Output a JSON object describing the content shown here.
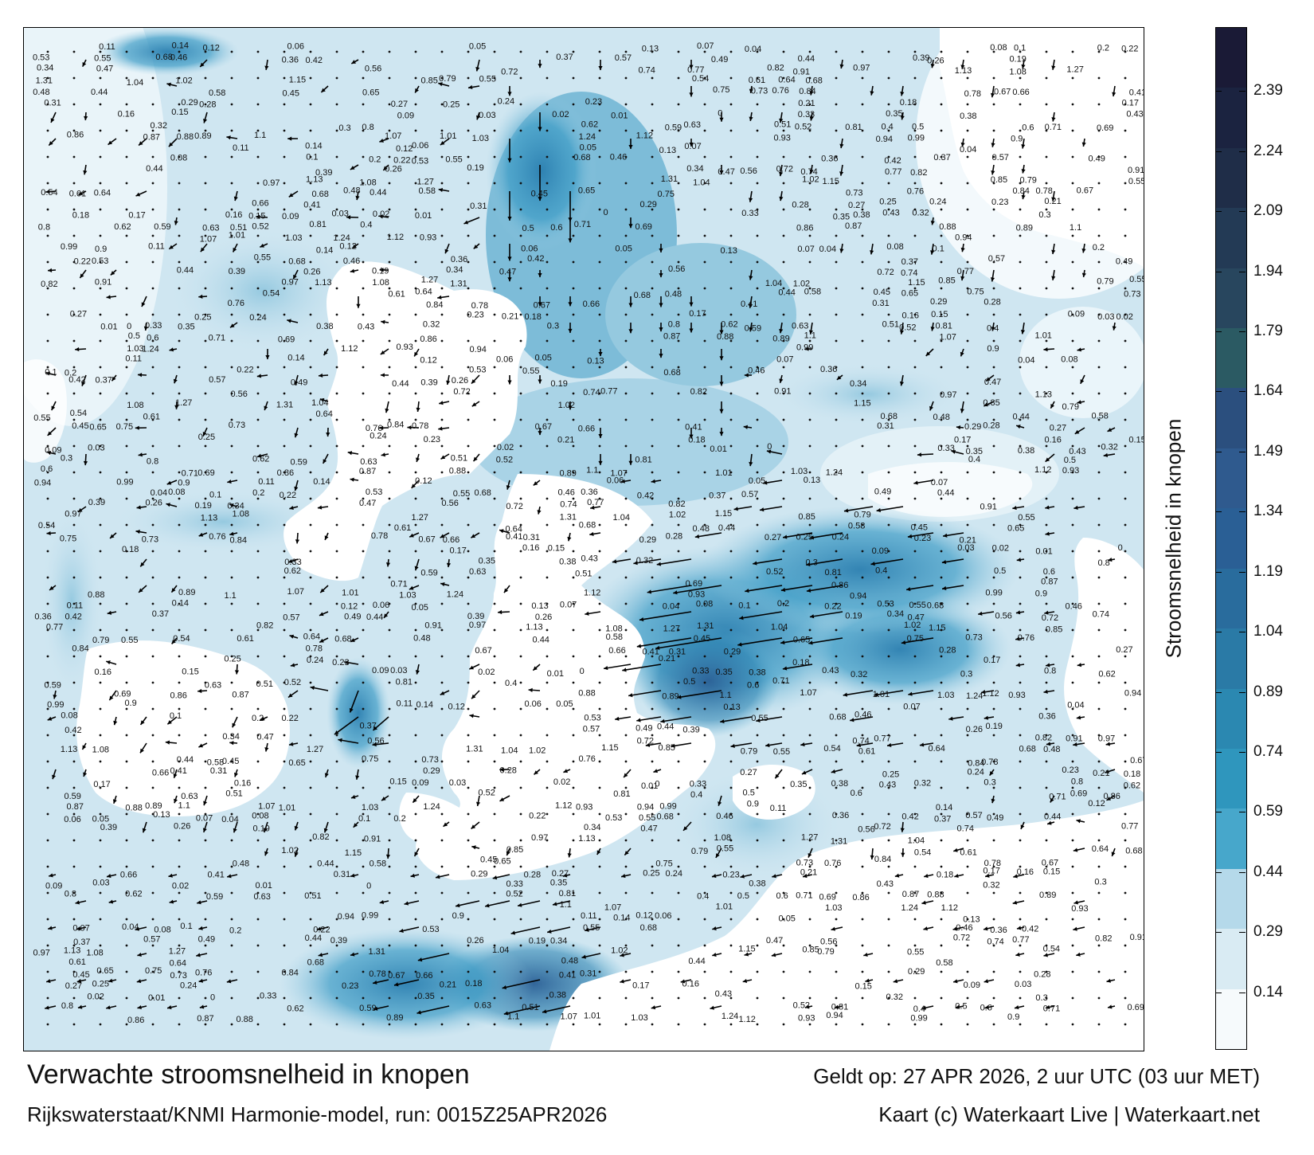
{
  "title": "Verwachte stroomsnelheid in knopen",
  "subtitle": "Rijkswaterstaat/KNMI Harmonie-model, run: 0015Z25APR2026",
  "valid_time": "Geldt op: 27 APR 2026, 2 uur UTC (03 uur MET)",
  "credit": "Kaart (c) Waterkaart Live | Waterkaart.net",
  "colorbar": {
    "label": "Stroomsnelheid in knopen",
    "ticks": [
      "0.14",
      "0.29",
      "0.44",
      "0.59",
      "0.74",
      "0.89",
      "1.04",
      "1.19",
      "1.34",
      "1.49",
      "1.64",
      "1.79",
      "1.94",
      "2.09",
      "2.24",
      "2.39"
    ],
    "min": 0,
    "max": 2.55,
    "colors": [
      "#f6fafc",
      "#d9ebf3",
      "#b5d9ea",
      "#47a7cb",
      "#2f96bd",
      "#2b88b1",
      "#2a7aa6",
      "#296c9d",
      "#2a5f95",
      "#2f5a8e",
      "#2b4f7e",
      "#2b5a63",
      "#28465e",
      "#233a55",
      "#1f2d48",
      "#1b2340",
      "#1a1a36"
    ]
  },
  "map": {
    "labels": [
      {
        "t": "0.11"
      },
      {
        "t": "0.14"
      },
      {
        "t": "0.12"
      },
      {
        "t": "0.06"
      },
      {
        "t": "0.05"
      },
      {
        "t": "0.13"
      },
      {
        "t": "0.07"
      },
      {
        "t": "0.04"
      },
      {
        "t": "0.08"
      },
      {
        "t": "0.1"
      },
      {
        "t": "0.2"
      },
      {
        "t": "0.22"
      },
      {
        "t": "0.53"
      },
      {
        "t": "0.55"
      },
      {
        "t": "0.68"
      },
      {
        "t": "0.46"
      },
      {
        "t": "0.36"
      },
      {
        "t": "0.42"
      },
      {
        "t": "0.37"
      },
      {
        "t": "0.57"
      },
      {
        "t": "0.49"
      },
      {
        "t": "0.44"
      },
      {
        "t": "0.39"
      },
      {
        "t": "0.26"
      },
      {
        "t": "0.19"
      },
      {
        "t": "0.34"
      },
      {
        "t": "0.47"
      },
      {
        "t": "0.56"
      },
      {
        "t": "0.72"
      },
      {
        "t": "0.74"
      },
      {
        "t": "0.77"
      },
      {
        "t": "0.82"
      },
      {
        "t": "0.91"
      },
      {
        "t": "0.97"
      },
      {
        "t": "1.13"
      },
      {
        "t": "1.08"
      },
      {
        "t": "1.27"
      },
      {
        "t": "1.31"
      },
      {
        "t": "1.04"
      },
      {
        "t": "1.02"
      },
      {
        "t": "1.15"
      },
      {
        "t": "0.85"
      },
      {
        "t": "0.79"
      },
      {
        "t": "0.55"
      },
      {
        "t": "0.54"
      },
      {
        "t": "0.61"
      },
      {
        "t": "0.64"
      },
      {
        "t": "0.68"
      },
      {
        "t": "0.48"
      },
      {
        "t": "0.44"
      },
      {
        "t": "0.58"
      },
      {
        "t": "0.45"
      },
      {
        "t": "0.65"
      },
      {
        "t": "0.75"
      },
      {
        "t": "0.73"
      },
      {
        "t": "0.76"
      },
      {
        "t": "0.84"
      },
      {
        "t": "0.78"
      },
      {
        "t": "0.67"
      },
      {
        "t": "0.66"
      },
      {
        "t": "0.41"
      },
      {
        "t": "0.31"
      },
      {
        "t": "0.29"
      },
      {
        "t": "0.28"
      },
      {
        "t": "0.27"
      },
      {
        "t": "0.25"
      },
      {
        "t": "0.24"
      },
      {
        "t": "0.23"
      },
      {
        "t": "0.21"
      },
      {
        "t": "0.18"
      },
      {
        "t": "0.17"
      },
      {
        "t": "0.16"
      },
      {
        "t": "0.15"
      },
      {
        "t": "0.09"
      },
      {
        "t": "0.03"
      },
      {
        "t": "0.02"
      },
      {
        "t": "0.01"
      },
      {
        "t": "0"
      },
      {
        "t": "0.33"
      },
      {
        "t": "0.35"
      },
      {
        "t": "0.38"
      },
      {
        "t": "0.43"
      },
      {
        "t": "0.32"
      },
      {
        "t": "0.3"
      },
      {
        "t": "0.8"
      },
      {
        "t": "0.62"
      },
      {
        "t": "0.59"
      },
      {
        "t": "0.63"
      },
      {
        "t": "0.51"
      },
      {
        "t": "0.52"
      },
      {
        "t": "0.81"
      },
      {
        "t": "0.4"
      },
      {
        "t": "0.5"
      },
      {
        "t": "0.6"
      },
      {
        "t": "0.71"
      },
      {
        "t": "0.69"
      },
      {
        "t": "0.86"
      },
      {
        "t": "0.87"
      },
      {
        "t": "0.88"
      },
      {
        "t": "0.89"
      },
      {
        "t": "1.1"
      },
      {
        "t": "1.07"
      },
      {
        "t": "1.01"
      },
      {
        "t": "1.03"
      },
      {
        "t": "1.24"
      },
      {
        "t": "1.12"
      },
      {
        "t": "0.93"
      },
      {
        "t": "0.94"
      },
      {
        "t": "0.99"
      },
      {
        "t": "0.9"
      }
    ]
  }
}
